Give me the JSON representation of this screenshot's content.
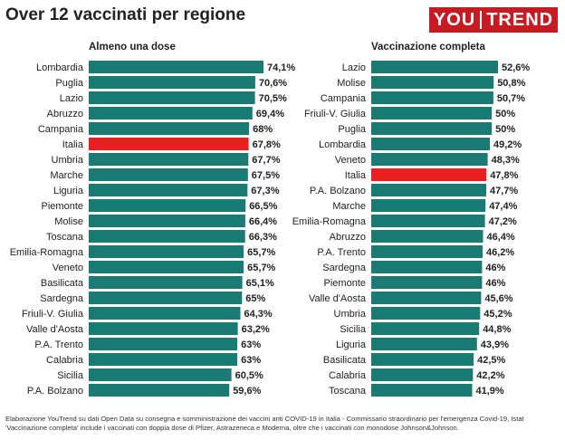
{
  "page": {
    "title": "Over 12 vaccinati per regione",
    "logo": {
      "left": "YOU",
      "right": "TREND"
    },
    "footer_lines": [
      "Elaborazione YouTrend su dati Open Data su consegna e somministrazione dei vaccini anti COVID-19 in Italia - Commissario straordinario per l'emergenza Covid-19, Istat",
      "'Vaccinazione completa' include i vaccinati con doppia dose di Pfizer, Astrazeneca e Moderna, oltre che i vaccinati con monodose Johnson&Johnson."
    ]
  },
  "colors": {
    "bar": "#1a7a74",
    "highlight": "#e8201f",
    "text": "#222222"
  },
  "chart_data": [
    {
      "type": "bar",
      "orientation": "horizontal",
      "title": "Almeno una dose",
      "highlight": "Italia",
      "xlim": [
        0,
        74.1
      ],
      "categories": [
        "Lombardia",
        "Puglia",
        "Lazio",
        "Abruzzo",
        "Campania",
        "Italia",
        "Umbria",
        "Marche",
        "Liguria",
        "Piemonte",
        "Molise",
        "Toscana",
        "Emilia-Romagna",
        "Veneto",
        "Basilicata",
        "Sardegna",
        "Friuli-V. Giulia",
        "Valle d'Aosta",
        "P.A. Trento",
        "Calabria",
        "Sicilia",
        "P.A. Bolzano"
      ],
      "values": [
        74.1,
        70.6,
        70.5,
        69.4,
        68,
        67.8,
        67.7,
        67.5,
        67.3,
        66.5,
        66.4,
        66.3,
        65.7,
        65.7,
        65.1,
        65,
        64.3,
        63.2,
        63,
        63,
        60.5,
        59.6
      ],
      "labels": [
        "74,1%",
        "70,6%",
        "70,5%",
        "69,4%",
        "68%",
        "67,8%",
        "67,7%",
        "67,5%",
        "67,3%",
        "66,5%",
        "66,4%",
        "66,3%",
        "65,7%",
        "65,7%",
        "65,1%",
        "65%",
        "64,3%",
        "63,2%",
        "63%",
        "63%",
        "60,5%",
        "59,6%"
      ]
    },
    {
      "type": "bar",
      "orientation": "horizontal",
      "title": "Vaccinazione completa",
      "highlight": "Italia",
      "xlim": [
        0,
        52.6
      ],
      "categories": [
        "Lazio",
        "Molise",
        "Campania",
        "Friuli-V. Giulia",
        "Puglia",
        "Lombardia",
        "Veneto",
        "Italia",
        "P.A. Bolzano",
        "Marche",
        "Emilia-Romagna",
        "Abruzzo",
        "P.A. Trento",
        "Sardegna",
        "Piemonte",
        "Valle d'Aosta",
        "Umbria",
        "Sicilia",
        "Liguria",
        "Basilicata",
        "Calabria",
        "Toscana"
      ],
      "values": [
        52.6,
        50.8,
        50.7,
        50,
        50,
        49.2,
        48.3,
        47.8,
        47.7,
        47.4,
        47.2,
        46.4,
        46.2,
        46,
        46,
        45.6,
        45.2,
        44.8,
        43.9,
        42.5,
        42.2,
        41.9
      ],
      "labels": [
        "52,6%",
        "50,8%",
        "50,7%",
        "50%",
        "50%",
        "49,2%",
        "48,3%",
        "47,8%",
        "47,7%",
        "47,4%",
        "47,2%",
        "46,4%",
        "46,2%",
        "46%",
        "46%",
        "45,6%",
        "45,2%",
        "44,8%",
        "43,9%",
        "42,5%",
        "42,2%",
        "41,9%"
      ]
    }
  ]
}
